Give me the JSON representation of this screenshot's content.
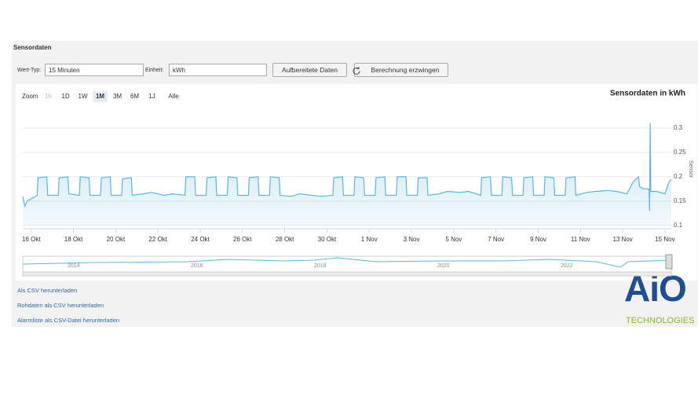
{
  "header": {
    "title": "Sensordaten"
  },
  "controls": {
    "wert_typ_label": "Wert-Typ:",
    "wert_typ_value": "15 Minuten",
    "einheit_label": "Einheit:",
    "einheit_value": "kWh",
    "button_processed": "Aufbereitete Daten",
    "button_recalc": "Berechnung erzwingen"
  },
  "zoom": {
    "label": "Zoom",
    "options": [
      "1h",
      "1D",
      "1W",
      "1M",
      "3M",
      "6M",
      "1J",
      "Alle"
    ]
  },
  "chart_data": {
    "type": "line",
    "title": "Sensordaten in kWh",
    "y_axis_label": "Sensor",
    "color": "#5cb6df",
    "grid": true,
    "xlim": [
      -0.4,
      30.3
    ],
    "ylim": [
      0.1,
      0.34
    ],
    "yticks": [
      0.1,
      0.15,
      0.2,
      0.25,
      0.3
    ],
    "xticks": [
      {
        "value": 0,
        "label": "16 Okt"
      },
      {
        "value": 2,
        "label": "18 Okt"
      },
      {
        "value": 4,
        "label": "20 Okt"
      },
      {
        "value": 6,
        "label": "22 Okt"
      },
      {
        "value": 8,
        "label": "24 Okt"
      },
      {
        "value": 10,
        "label": "26 Okt"
      },
      {
        "value": 12,
        "label": "28 Okt"
      },
      {
        "value": 14,
        "label": "30 Okt"
      },
      {
        "value": 16,
        "label": "1 Nov"
      },
      {
        "value": 18,
        "label": "3 Nov"
      },
      {
        "value": 20,
        "label": "5 Nov"
      },
      {
        "value": 22,
        "label": "7 Nov"
      },
      {
        "value": 24,
        "label": "9 Nov"
      },
      {
        "value": 26,
        "label": "11 Nov"
      },
      {
        "value": 28,
        "label": "13 Nov"
      },
      {
        "value": 30,
        "label": "15 Nov"
      }
    ],
    "x": [
      -0.4,
      -0.3,
      -0.2,
      0.28,
      0.32,
      0.74,
      0.78,
      1.28,
      1.32,
      1.74,
      1.78,
      2.28,
      2.32,
      2.74,
      2.78,
      3.28,
      3.32,
      3.74,
      3.78,
      4.28,
      4.32,
      4.74,
      4.78,
      5.3,
      5.7,
      6.3,
      6.7,
      7.28,
      7.32,
      7.74,
      7.78,
      8.28,
      8.32,
      8.74,
      8.78,
      9.28,
      9.32,
      9.74,
      9.78,
      10.28,
      10.32,
      10.74,
      10.78,
      11.28,
      11.32,
      11.74,
      11.78,
      12.3,
      12.7,
      13.3,
      13.7,
      14.28,
      14.32,
      14.74,
      14.78,
      15.28,
      15.32,
      15.74,
      15.78,
      16.28,
      16.32,
      16.74,
      16.78,
      17.28,
      17.32,
      17.74,
      17.78,
      18.28,
      18.32,
      18.74,
      18.78,
      19.3,
      19.7,
      20.3,
      20.7,
      21.28,
      21.32,
      21.74,
      21.78,
      22.28,
      22.32,
      22.74,
      22.78,
      23.28,
      23.32,
      23.74,
      23.78,
      24.28,
      24.32,
      24.74,
      24.78,
      25.28,
      25.32,
      25.74,
      25.78,
      26.3,
      26.7,
      27.3,
      27.7,
      28.2,
      28.5,
      28.75,
      28.8,
      29.0,
      29.25,
      29.27,
      29.3,
      29.33,
      29.6,
      30.0,
      30.2,
      30.3
    ],
    "values": [
      0.16,
      0.14,
      0.15,
      0.162,
      0.198,
      0.2,
      0.162,
      0.162,
      0.198,
      0.2,
      0.165,
      0.162,
      0.2,
      0.198,
      0.162,
      0.162,
      0.198,
      0.2,
      0.162,
      0.162,
      0.196,
      0.198,
      0.162,
      0.165,
      0.168,
      0.162,
      0.165,
      0.162,
      0.2,
      0.2,
      0.162,
      0.162,
      0.198,
      0.2,
      0.162,
      0.162,
      0.2,
      0.198,
      0.162,
      0.162,
      0.198,
      0.2,
      0.162,
      0.162,
      0.2,
      0.198,
      0.162,
      0.16,
      0.165,
      0.162,
      0.16,
      0.162,
      0.198,
      0.2,
      0.162,
      0.162,
      0.2,
      0.198,
      0.162,
      0.162,
      0.198,
      0.2,
      0.162,
      0.162,
      0.2,
      0.2,
      0.162,
      0.162,
      0.198,
      0.198,
      0.162,
      0.165,
      0.17,
      0.168,
      0.17,
      0.162,
      0.198,
      0.2,
      0.162,
      0.162,
      0.2,
      0.198,
      0.162,
      0.162,
      0.198,
      0.2,
      0.162,
      0.162,
      0.2,
      0.198,
      0.162,
      0.162,
      0.198,
      0.2,
      0.162,
      0.168,
      0.17,
      0.172,
      0.17,
      0.165,
      0.19,
      0.2,
      0.18,
      0.175,
      0.175,
      0.13,
      0.31,
      0.17,
      0.17,
      0.165,
      0.19,
      0.195
    ]
  },
  "navigator": {
    "labels": [
      "2014",
      "2016",
      "2018",
      "2020",
      "2022"
    ]
  },
  "links": [
    "Als CSV herunterladen",
    "Rohdaten als CSV herunterladen",
    "Alarmliste als CSV-Datei herunterladen"
  ],
  "logo": {
    "name": "AiO",
    "tagline": "TECHNOLOGIES"
  }
}
